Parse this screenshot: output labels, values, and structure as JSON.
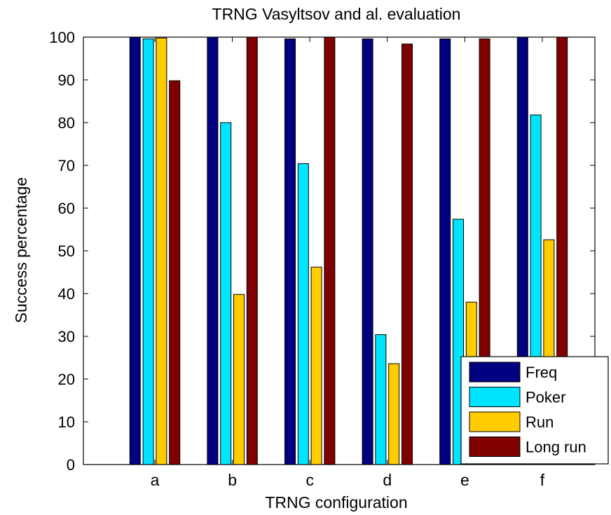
{
  "chart_data": {
    "type": "bar",
    "title": "TRNG Vasyltsov and al. evaluation",
    "xlabel": "TRNG configuration",
    "ylabel": "Success percentage",
    "ylim": [
      0,
      100
    ],
    "yticks": [
      0,
      10,
      20,
      30,
      40,
      50,
      60,
      70,
      80,
      90,
      100
    ],
    "categories": [
      "a",
      "b",
      "c",
      "d",
      "e",
      "f"
    ],
    "grid": false,
    "legend_position": "bottom-right",
    "series": [
      {
        "name": "Freq",
        "color": "#000080",
        "values": [
          100,
          100,
          99.6,
          99.6,
          99.6,
          100
        ]
      },
      {
        "name": "Poker",
        "color": "#00e5ff",
        "values": [
          99.6,
          80,
          70.4,
          30.4,
          57.4,
          81.8
        ]
      },
      {
        "name": "Run",
        "color": "#ffcc00",
        "values": [
          99.8,
          39.8,
          46.2,
          23.6,
          38,
          52.6
        ]
      },
      {
        "name": "Long run",
        "color": "#800000",
        "values": [
          89.8,
          100,
          100,
          98.4,
          99.6,
          100
        ]
      }
    ]
  }
}
